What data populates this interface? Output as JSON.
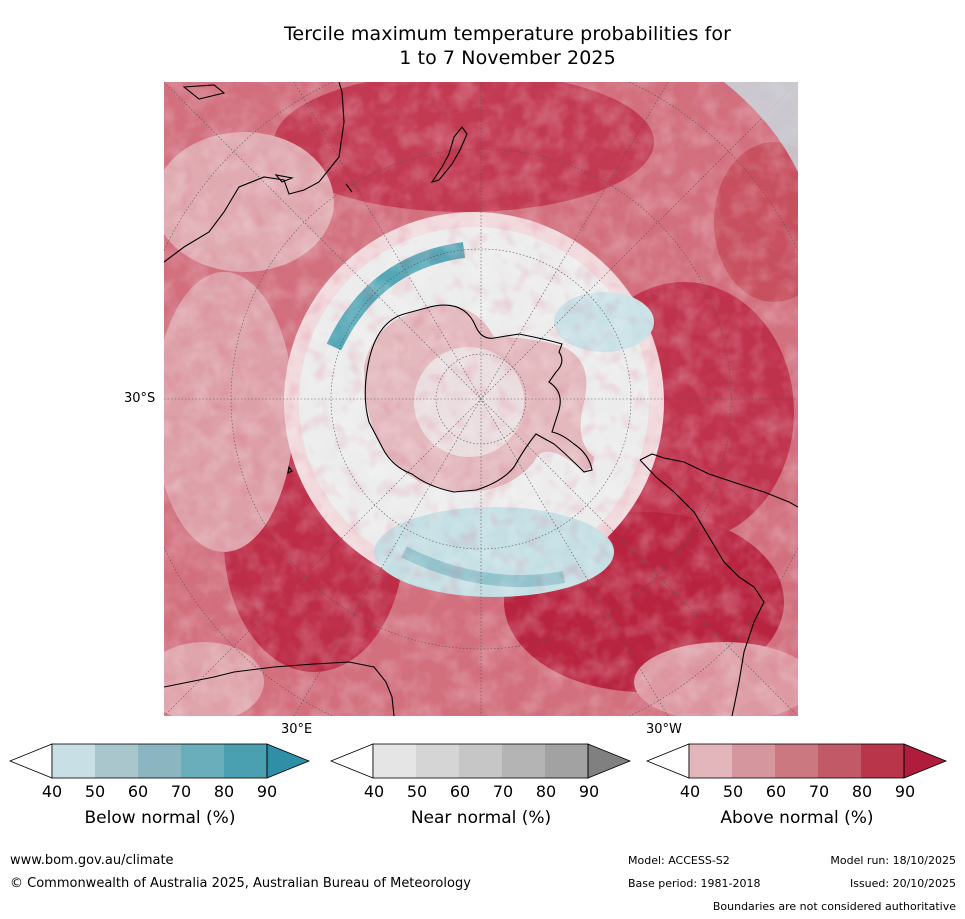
{
  "title": {
    "line1": "Tercile maximum temperature probabilities for",
    "line2": "1 to 7 November 2025"
  },
  "map": {
    "labels": {
      "lat_30s": "30°S",
      "lon_30e": "30°E",
      "lon_30w": "30°W"
    },
    "colors": {
      "background_above_normal": "#d96a78",
      "strong_above_normal": "#b5213f",
      "weak_above_normal": "#e8b8bf",
      "near_normal": "#ececec",
      "below_normal": "#a8d0d8",
      "strong_below_normal": "#3a9bad",
      "coastline": "#000000"
    }
  },
  "colorbars": [
    {
      "label": "Below normal (%)",
      "ticks": [
        "40",
        "50",
        "60",
        "70",
        "80",
        "90"
      ],
      "colors": [
        "#ffffff",
        "#c8e0e5",
        "#a8c6cc",
        "#8bb5c0",
        "#6aaebb",
        "#4a9fb1",
        "#2e8fa6"
      ]
    },
    {
      "label": "Near normal (%)",
      "ticks": [
        "40",
        "50",
        "60",
        "70",
        "80",
        "90"
      ],
      "colors": [
        "#ffffff",
        "#e5e5e5",
        "#d5d5d5",
        "#c6c6c6",
        "#b4b4b4",
        "#a2a2a2",
        "#808080"
      ]
    },
    {
      "label": "Above normal (%)",
      "ticks": [
        "40",
        "50",
        "60",
        "70",
        "80",
        "90"
      ],
      "colors": [
        "#ffffff",
        "#e2b6bb",
        "#d6969d",
        "#cb7880",
        "#c15a66",
        "#b9354a",
        "#b01c3b"
      ]
    }
  ],
  "footer": {
    "website": "www.bom.gov.au/climate",
    "copyright": "© Commonwealth of Australia 2025, Australian Bureau of Meteorology",
    "model": "Model: ACCESS-S2",
    "base_period": "Base period: 1981-2018",
    "model_run": "Model run: 18/10/2025",
    "issued": "Issued: 20/10/2025",
    "disclaimer": "Boundaries are not considered authoritative"
  }
}
